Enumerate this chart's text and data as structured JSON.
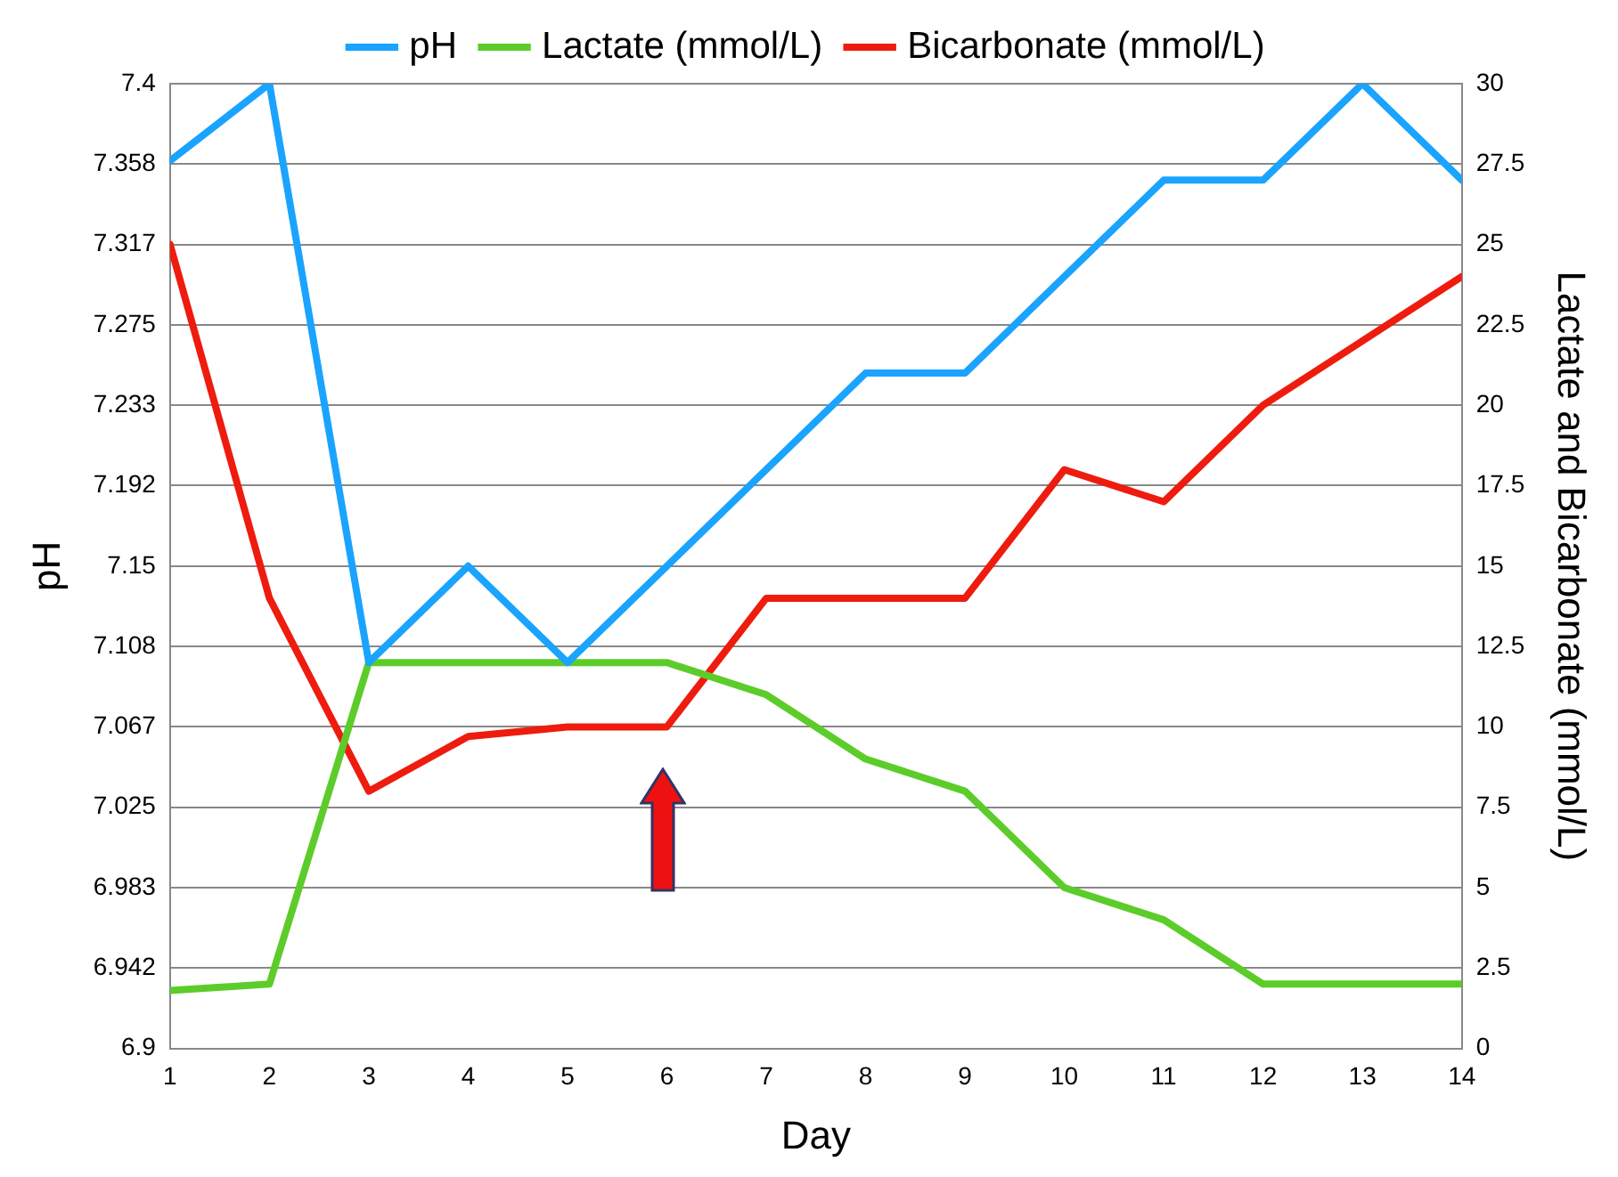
{
  "chart_data": {
    "type": "line",
    "xlabel": "Day",
    "ylabel": "pH",
    "y2label": "Lactate and Bicarbonate (mmol/L)",
    "x": [
      1,
      2,
      3,
      4,
      5,
      6,
      7,
      8,
      9,
      10,
      11,
      12,
      13,
      14
    ],
    "xlim": [
      1,
      14
    ],
    "xticks": [
      1,
      2,
      3,
      4,
      5,
      6,
      7,
      8,
      9,
      10,
      11,
      12,
      13,
      14
    ],
    "ylim": [
      6.9,
      7.4
    ],
    "yticks": [
      6.9,
      {
        "value": 6.9417,
        "label": "6.942"
      },
      {
        "value": 6.9833,
        "label": "6.983"
      },
      7.025,
      {
        "value": 7.0667,
        "label": "7.067"
      },
      {
        "value": 7.1083,
        "label": "7.108"
      },
      7.15,
      {
        "value": 7.1917,
        "label": "7.192"
      },
      {
        "value": 7.2333,
        "label": "7.233"
      },
      7.275,
      {
        "value": 7.3167,
        "label": "7.317"
      },
      {
        "value": 7.3583,
        "label": "7.358"
      },
      7.4
    ],
    "y2lim": [
      0,
      30
    ],
    "y2ticks": [
      0,
      2.5,
      5,
      7.5,
      10,
      12.5,
      15,
      17.5,
      20,
      22.5,
      25,
      27.5,
      30
    ],
    "series": [
      {
        "name": "pH",
        "color": "#1aa3ff",
        "values": [
          7.36,
          7.4,
          7.1,
          7.15,
          7.1,
          7.15,
          7.2,
          7.25,
          7.25,
          7.3,
          7.35,
          7.35,
          7.4,
          7.35
        ]
      },
      {
        "name": "Lactate (mmol/L)",
        "color": "#5ccc2a",
        "axis": "y2",
        "values": [
          1.8,
          2,
          12,
          12,
          12,
          12,
          11,
          9,
          8,
          5,
          4,
          2,
          2,
          2
        ]
      },
      {
        "name": "Bicarbonate (mmol/L)",
        "color": "#ee1c0e",
        "axis": "y2",
        "values": [
          25,
          14,
          8,
          9.7,
          10,
          10,
          14,
          14,
          14,
          18,
          17,
          20,
          22,
          24
        ]
      }
    ],
    "grid": "y",
    "legend": "top",
    "marker": "none",
    "line_style": "solid"
  }
}
